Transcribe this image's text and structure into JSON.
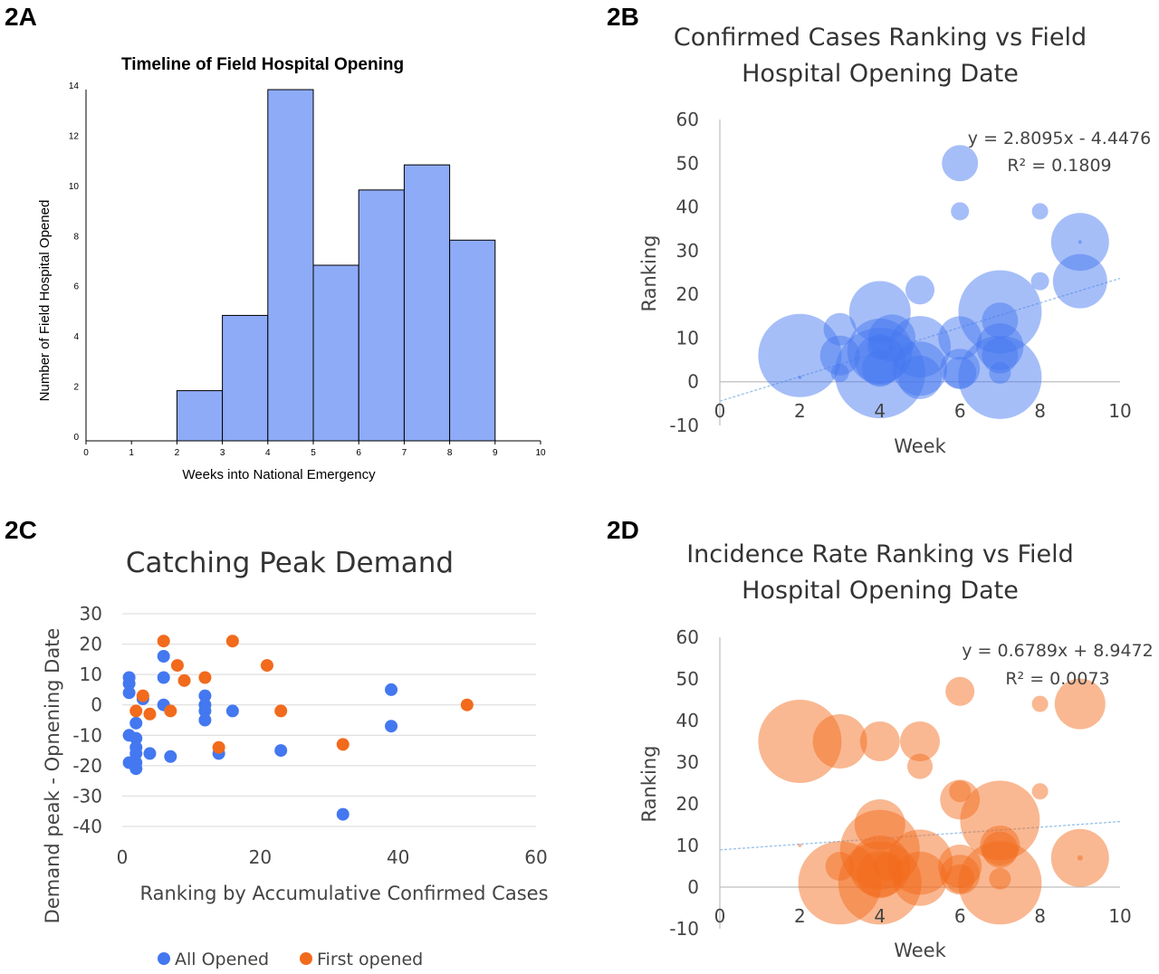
{
  "panel_labels": {
    "a": "2A",
    "b": "2B",
    "c": "2C",
    "d": "2D"
  },
  "colors": {
    "bar_fill": "#8eabf7",
    "blue": "#4478f0",
    "orange": "#f26a1c",
    "trend": "#9ec4ea",
    "grid": "#d9d9d9",
    "axis": "#bfbfbf"
  },
  "chart_data": [
    {
      "id": "2A",
      "type": "bar",
      "title": "Timeline of Field Hospital Opening",
      "xlabel": "Weeks into National Emergency",
      "ylabel": "Number of Field Hospital Opened",
      "bin_edges": [
        2,
        3,
        4,
        5,
        6,
        7,
        8,
        9
      ],
      "values": [
        2,
        5,
        14,
        7,
        10,
        11,
        8
      ],
      "xlim": [
        0,
        10
      ],
      "ylim": [
        0,
        14
      ],
      "xticks": [
        "0",
        "1",
        "2",
        "3",
        "4",
        "5",
        "6",
        "7",
        "8",
        "9",
        "10"
      ],
      "yticks": [
        "0",
        "2",
        "4",
        "6",
        "8",
        "10",
        "12",
        "14"
      ],
      "grid": false
    },
    {
      "id": "2B",
      "type": "scatter",
      "subtype": "bubble",
      "title_lines": [
        "Confirmed Cases Ranking vs Field",
        "Hospital Opening Date"
      ],
      "xlabel": "Week",
      "ylabel": "Ranking",
      "xlim": [
        0,
        10
      ],
      "ylim": [
        -10,
        60
      ],
      "xticks": [
        "0",
        "2",
        "4",
        "6",
        "8",
        "10"
      ],
      "yticks": [
        "60",
        "50",
        "40",
        "30",
        "20",
        "10",
        "0",
        "-10"
      ],
      "equation": "y = 2.8095x - 4.4476",
      "r_squared": "R² = 0.1809",
      "trendline": {
        "slope": 2.8095,
        "intercept": -4.4476
      },
      "grid": false,
      "points": [
        {
          "x": 2,
          "y": 6,
          "size": 46
        },
        {
          "x": 2,
          "y": 1,
          "size": 2
        },
        {
          "x": 3,
          "y": 12,
          "size": 18
        },
        {
          "x": 3,
          "y": 6,
          "size": 22
        },
        {
          "x": 3,
          "y": 2,
          "size": 10
        },
        {
          "x": 4,
          "y": 16,
          "size": 34
        },
        {
          "x": 4,
          "y": 2,
          "size": 50
        },
        {
          "x": 4,
          "y": 7,
          "size": 36
        },
        {
          "x": 4,
          "y": 5,
          "size": 28
        },
        {
          "x": 4,
          "y": 3,
          "size": 20
        },
        {
          "x": 4,
          "y": 8,
          "size": 14
        },
        {
          "x": 4.3,
          "y": 10,
          "size": 26
        },
        {
          "x": 5,
          "y": 21,
          "size": 16
        },
        {
          "x": 5,
          "y": 8,
          "size": 34
        },
        {
          "x": 5,
          "y": 3,
          "size": 30
        },
        {
          "x": 5,
          "y": 1,
          "size": 24
        },
        {
          "x": 6,
          "y": 50,
          "size": 20
        },
        {
          "x": 6,
          "y": 39,
          "size": 10
        },
        {
          "x": 6,
          "y": 10,
          "size": 24
        },
        {
          "x": 6,
          "y": 3,
          "size": 22
        },
        {
          "x": 6,
          "y": 2,
          "size": 18
        },
        {
          "x": 7,
          "y": 16,
          "size": 46
        },
        {
          "x": 7,
          "y": 14,
          "size": 20
        },
        {
          "x": 7,
          "y": 8,
          "size": 26
        },
        {
          "x": 7,
          "y": 6,
          "size": 20
        },
        {
          "x": 7,
          "y": 1,
          "size": 46
        },
        {
          "x": 7,
          "y": 2,
          "size": 12
        },
        {
          "x": 8,
          "y": 39,
          "size": 9
        },
        {
          "x": 8,
          "y": 23,
          "size": 10
        },
        {
          "x": 9,
          "y": 32,
          "size": 32
        },
        {
          "x": 9,
          "y": 23,
          "size": 30
        },
        {
          "x": 9,
          "y": 32,
          "size": 2
        }
      ]
    },
    {
      "id": "2C",
      "type": "scatter",
      "title": "Catching Peak Demand",
      "xlabel": "Ranking by Accumulative Confirmed Cases",
      "ylabel": "Demand peak - Opnening Date",
      "xlim": [
        0,
        60
      ],
      "ylim": [
        -40,
        30
      ],
      "xticks": [
        "0",
        "20",
        "40",
        "60"
      ],
      "yticks": [
        "30",
        "20",
        "10",
        "0",
        "-10",
        "-20",
        "-30",
        "-40"
      ],
      "grid": true,
      "legend_position": "bottom",
      "series": [
        {
          "name": "All Opened",
          "points": [
            [
              1,
              9
            ],
            [
              1,
              7
            ],
            [
              1,
              4
            ],
            [
              1,
              -10
            ],
            [
              1,
              -19
            ],
            [
              2,
              -6
            ],
            [
              2,
              -11
            ],
            [
              2,
              -14
            ],
            [
              2,
              -16
            ],
            [
              2,
              -19
            ],
            [
              2,
              -21
            ],
            [
              3,
              2
            ],
            [
              4,
              -16
            ],
            [
              6,
              16
            ],
            [
              6,
              9
            ],
            [
              6,
              0
            ],
            [
              7,
              -17
            ],
            [
              12,
              3
            ],
            [
              12,
              0
            ],
            [
              12,
              -2
            ],
            [
              12,
              -5
            ],
            [
              14,
              -16
            ],
            [
              16,
              -2
            ],
            [
              23,
              -15
            ],
            [
              32,
              -36
            ],
            [
              39,
              5
            ],
            [
              39,
              -7
            ]
          ]
        },
        {
          "name": "First opened",
          "points": [
            [
              2,
              -2
            ],
            [
              3,
              3
            ],
            [
              4,
              -3
            ],
            [
              6,
              21
            ],
            [
              7,
              -2
            ],
            [
              8,
              13
            ],
            [
              9,
              8
            ],
            [
              12,
              9
            ],
            [
              14,
              -14
            ],
            [
              16,
              21
            ],
            [
              21,
              13
            ],
            [
              23,
              -2
            ],
            [
              32,
              -13
            ],
            [
              50,
              0
            ]
          ]
        }
      ]
    },
    {
      "id": "2D",
      "type": "scatter",
      "subtype": "bubble",
      "title_lines": [
        "Incidence Rate Ranking vs Field",
        "Hospital Opening Date"
      ],
      "xlabel": "Week",
      "ylabel": "Ranking",
      "xlim": [
        0,
        10
      ],
      "ylim": [
        -10,
        60
      ],
      "xticks": [
        "0",
        "2",
        "4",
        "6",
        "8",
        "10"
      ],
      "yticks": [
        "60",
        "50",
        "40",
        "30",
        "20",
        "10",
        "0",
        "-10"
      ],
      "equation": "y = 0.6789x + 8.9472",
      "r_squared": "R² = 0.0073",
      "trendline": {
        "slope": 0.6789,
        "intercept": 8.9472
      },
      "grid": false,
      "points": [
        {
          "x": 2,
          "y": 35,
          "size": 46
        },
        {
          "x": 2,
          "y": 10,
          "size": 2
        },
        {
          "x": 3,
          "y": 35,
          "size": 30
        },
        {
          "x": 3,
          "y": 5,
          "size": 16
        },
        {
          "x": 3,
          "y": 1,
          "size": 46
        },
        {
          "x": 4,
          "y": 35,
          "size": 22
        },
        {
          "x": 4,
          "y": 15,
          "size": 28
        },
        {
          "x": 4,
          "y": 1,
          "size": 46
        },
        {
          "x": 4,
          "y": 9,
          "size": 44
        },
        {
          "x": 4,
          "y": 5,
          "size": 34
        },
        {
          "x": 4,
          "y": 3,
          "size": 26
        },
        {
          "x": 4.2,
          "y": 5,
          "size": 16
        },
        {
          "x": 5,
          "y": 35,
          "size": 22
        },
        {
          "x": 5,
          "y": 29,
          "size": 14
        },
        {
          "x": 5,
          "y": 6,
          "size": 36
        },
        {
          "x": 5,
          "y": 2,
          "size": 30
        },
        {
          "x": 6,
          "y": 47,
          "size": 16
        },
        {
          "x": 6,
          "y": 23,
          "size": 12
        },
        {
          "x": 6,
          "y": 21,
          "size": 22
        },
        {
          "x": 6,
          "y": 5,
          "size": 24
        },
        {
          "x": 6,
          "y": 3,
          "size": 22
        },
        {
          "x": 6,
          "y": 2,
          "size": 16
        },
        {
          "x": 7,
          "y": 16,
          "size": 44
        },
        {
          "x": 7,
          "y": 10,
          "size": 22
        },
        {
          "x": 7,
          "y": 9,
          "size": 20
        },
        {
          "x": 7,
          "y": 1,
          "size": 46
        },
        {
          "x": 7,
          "y": 2,
          "size": 12
        },
        {
          "x": 8,
          "y": 44,
          "size": 9
        },
        {
          "x": 8,
          "y": 23,
          "size": 9
        },
        {
          "x": 9,
          "y": 44,
          "size": 28
        },
        {
          "x": 9,
          "y": 7,
          "size": 32
        },
        {
          "x": 9,
          "y": 7,
          "size": 3
        }
      ]
    }
  ]
}
